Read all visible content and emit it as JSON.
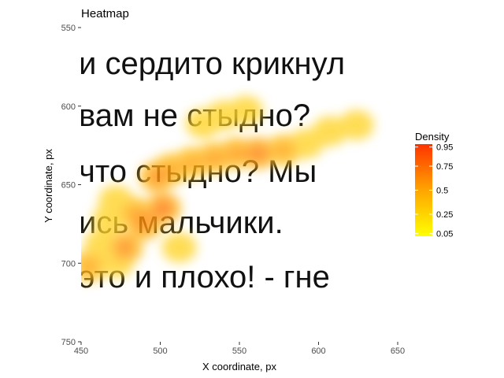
{
  "chart_data": {
    "type": "heatmap",
    "title": "Heatmap",
    "xlabel": "X coordinate, px",
    "ylabel": "Y coordinate, px",
    "xlim": [
      450,
      650
    ],
    "ylim": [
      550,
      750
    ],
    "y_reversed": true,
    "x_ticks": [
      450,
      500,
      550,
      600,
      650
    ],
    "y_ticks": [
      550,
      600,
      650,
      700,
      750
    ],
    "background_image_text": [
      "и сердито крикнул",
      "вам не стыдно?",
      "что  стыдно?  Мы",
      "ись мальчики.",
      "это и плохо! - гне"
    ],
    "density_points": [
      {
        "x": 455,
        "y": 702,
        "d": 0.55
      },
      {
        "x": 463,
        "y": 688,
        "d": 0.5
      },
      {
        "x": 468,
        "y": 672,
        "d": 0.5
      },
      {
        "x": 472,
        "y": 660,
        "d": 0.5
      },
      {
        "x": 478,
        "y": 690,
        "d": 0.7
      },
      {
        "x": 484,
        "y": 668,
        "d": 0.55
      },
      {
        "x": 490,
        "y": 675,
        "d": 0.7
      },
      {
        "x": 498,
        "y": 645,
        "d": 0.7
      },
      {
        "x": 502,
        "y": 665,
        "d": 0.8
      },
      {
        "x": 507,
        "y": 640,
        "d": 0.55
      },
      {
        "x": 512,
        "y": 690,
        "d": 0.45
      },
      {
        "x": 520,
        "y": 636,
        "d": 0.55
      },
      {
        "x": 534,
        "y": 633,
        "d": 0.6
      },
      {
        "x": 548,
        "y": 630,
        "d": 0.6
      },
      {
        "x": 562,
        "y": 630,
        "d": 0.75
      },
      {
        "x": 578,
        "y": 628,
        "d": 0.55
      },
      {
        "x": 592,
        "y": 624,
        "d": 0.45
      },
      {
        "x": 607,
        "y": 616,
        "d": 0.4
      },
      {
        "x": 624,
        "y": 612,
        "d": 0.5
      },
      {
        "x": 540,
        "y": 606,
        "d": 0.45
      },
      {
        "x": 554,
        "y": 603,
        "d": 0.45
      },
      {
        "x": 527,
        "y": 611,
        "d": 0.4
      },
      {
        "x": 472,
        "y": 700,
        "d": 0.5
      }
    ],
    "legend": {
      "title": "Density",
      "breaks": [
        0.95,
        0.75,
        0.5,
        0.25,
        0.05
      ],
      "labels": [
        "0.95",
        "0.75",
        "0.5",
        "0.25",
        "0.05"
      ],
      "low_color": "#ffff00",
      "high_color": "#ff3300",
      "placement": "right"
    }
  }
}
